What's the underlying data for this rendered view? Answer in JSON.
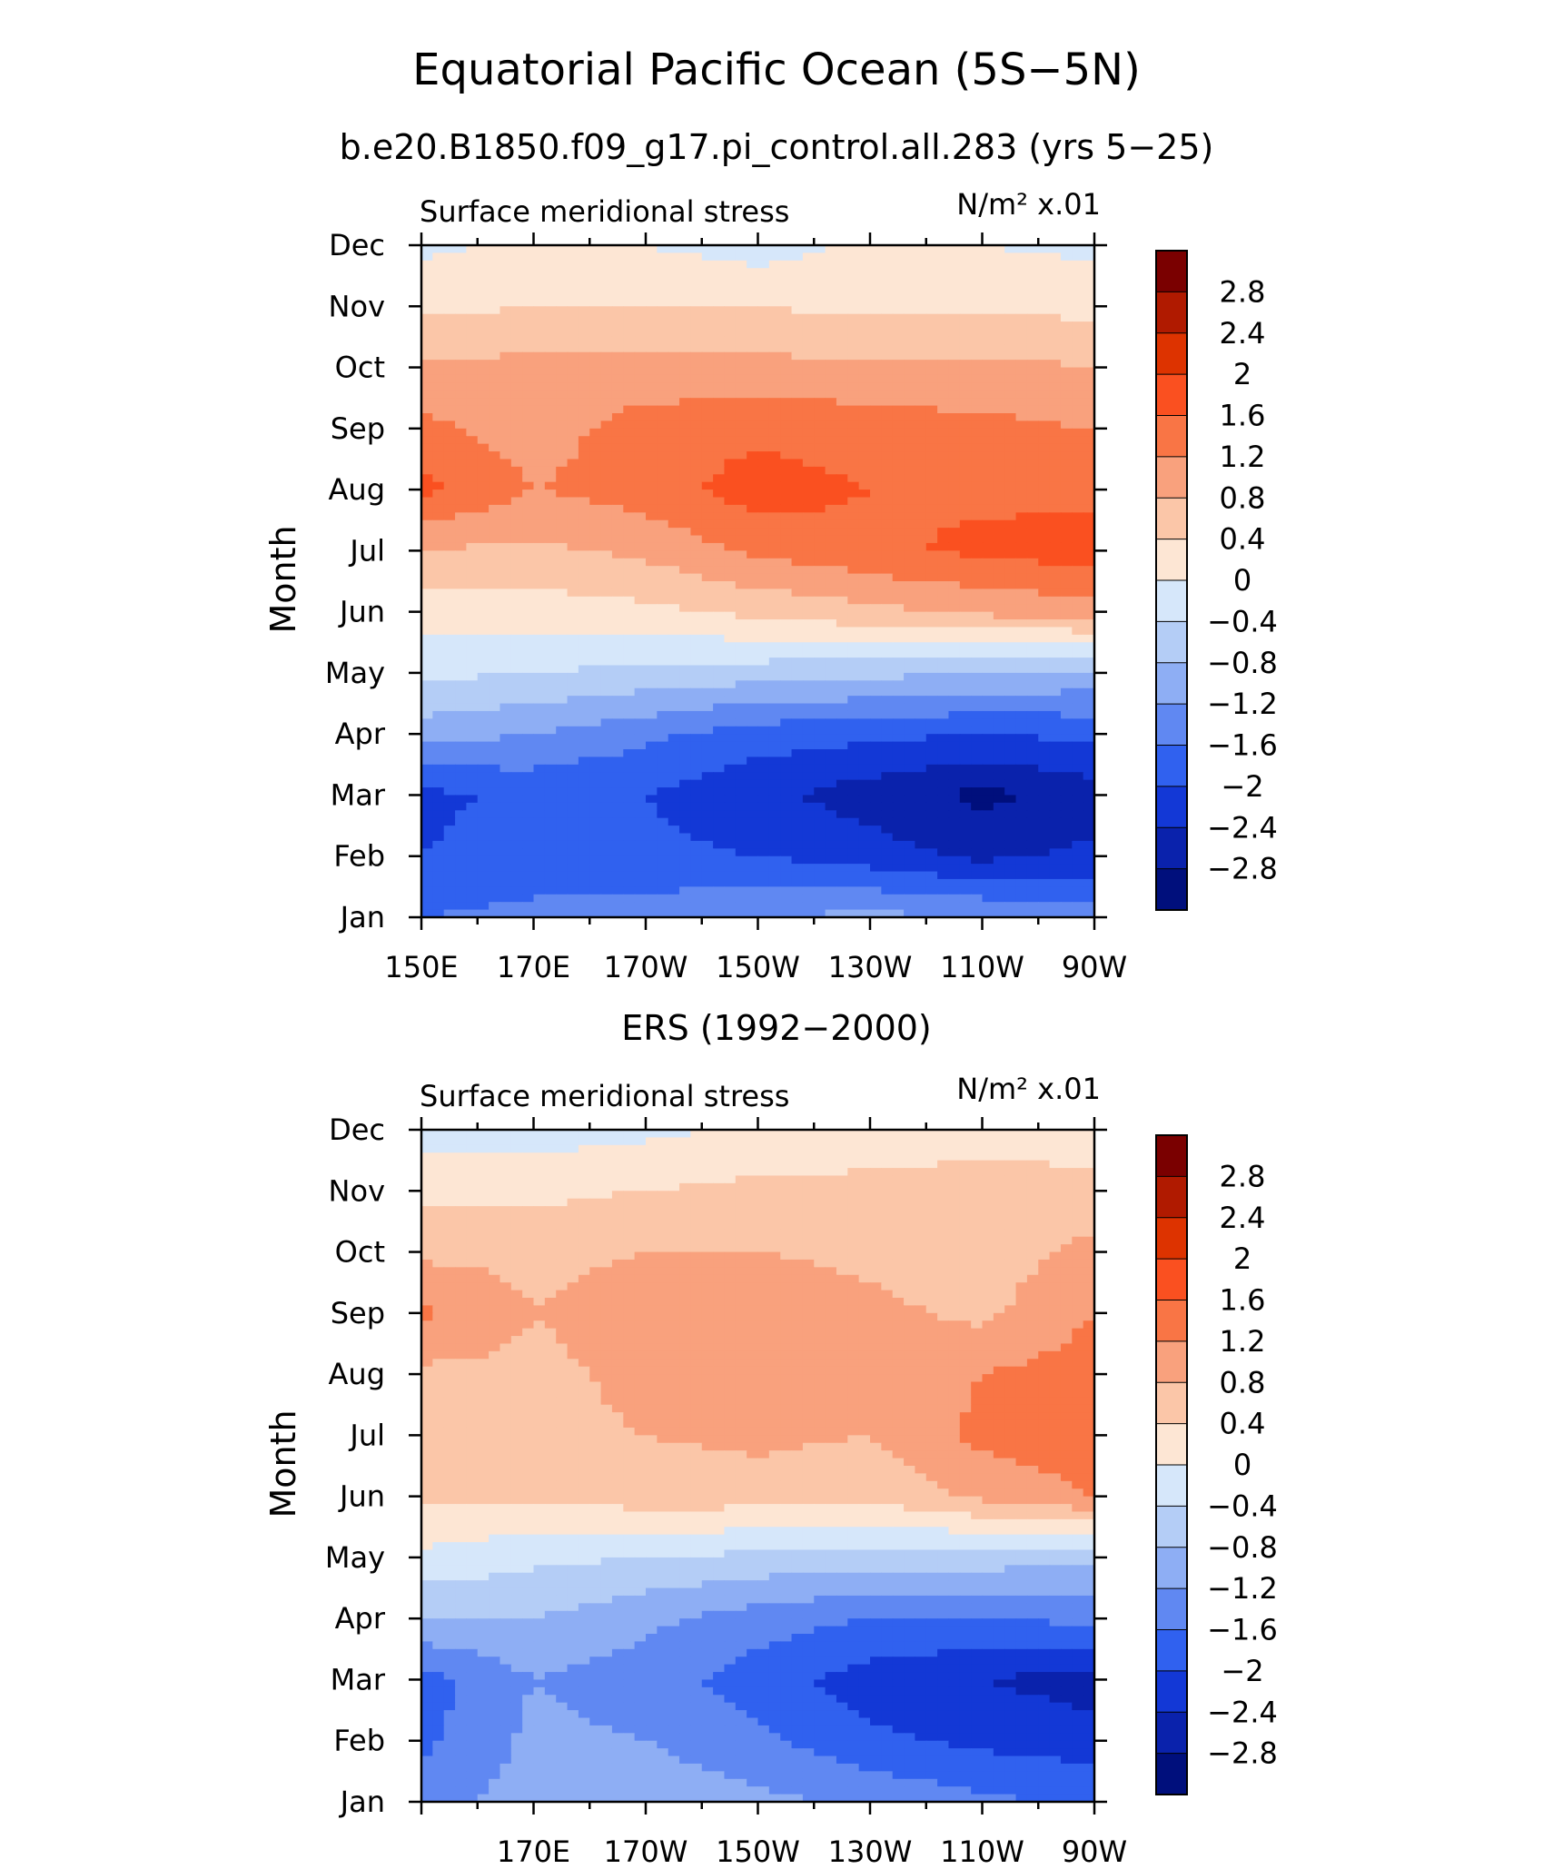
{
  "title": "Equatorial Pacific Ocean (5S−5N)",
  "chart_data": [
    {
      "type": "heatmap",
      "title": "b.e20.B1850.f09_g17.pi_control.all.283 (yrs 5−25)",
      "left_label": "Surface meridional stress",
      "right_label": "N/m² x.01",
      "ylabel": "Month",
      "xlabel": "",
      "x_tick_labels": [
        "150E",
        "170E",
        "170W",
        "150W",
        "130W",
        "110W",
        "90W"
      ],
      "y_tick_labels": [
        "Jan",
        "Feb",
        "Mar",
        "Apr",
        "May",
        "Jun",
        "Jul",
        "Aug",
        "Sep",
        "Oct",
        "Nov",
        "Dec"
      ],
      "x_range": [
        150,
        270
      ],
      "y_range": [
        1,
        12
      ],
      "x": [
        150,
        170,
        190,
        210,
        230,
        250,
        270
      ],
      "y": [
        "Jan",
        "Feb",
        "Mar",
        "Apr",
        "May",
        "Jun",
        "Jul",
        "Aug",
        "Sep",
        "Oct",
        "Nov",
        "Dec"
      ],
      "z": [
        [
          -1.6,
          -1.5,
          -1.4,
          -1.2,
          -1.1,
          -1.2,
          -1.4
        ],
        [
          -2.0,
          -1.8,
          -1.9,
          -2.0,
          -2.2,
          -2.5,
          -2.3
        ],
        [
          -2.1,
          -1.9,
          -2.0,
          -2.3,
          -2.6,
          -2.9,
          -2.6
        ],
        [
          -1.0,
          -1.2,
          -1.5,
          -1.8,
          -1.9,
          -2.0,
          -1.9
        ],
        [
          -0.3,
          -0.4,
          -0.5,
          -0.6,
          -0.7,
          -0.8,
          -0.9
        ],
        [
          0.2,
          0.2,
          0.3,
          0.5,
          0.7,
          0.9,
          1.0
        ],
        [
          0.8,
          0.7,
          0.9,
          1.3,
          1.5,
          1.7,
          1.8
        ],
        [
          1.7,
          1.2,
          1.4,
          1.8,
          1.6,
          1.5,
          1.5
        ],
        [
          1.3,
          1.0,
          1.4,
          1.5,
          1.4,
          1.3,
          1.2
        ],
        [
          0.9,
          0.9,
          0.9,
          0.9,
          0.9,
          0.9,
          0.8
        ],
        [
          0.3,
          0.4,
          0.4,
          0.4,
          0.3,
          0.3,
          0.3
        ],
        [
          -0.1,
          0.1,
          0.0,
          -0.2,
          0.1,
          0.0,
          -0.1
        ]
      ]
    },
    {
      "type": "heatmap",
      "title": "ERS (1992−2000)",
      "left_label": "Surface meridional stress",
      "right_label": "N/m² x.01",
      "ylabel": "Month",
      "xlabel": "",
      "x_tick_labels": [
        "170E",
        "170W",
        "150W",
        "130W",
        "110W",
        "90W"
      ],
      "y_tick_labels": [
        "Jan",
        "Feb",
        "Mar",
        "Apr",
        "May",
        "Jun",
        "Jul",
        "Aug",
        "Sep",
        "Oct",
        "Nov",
        "Dec"
      ],
      "x_range": [
        150,
        270
      ],
      "y_range": [
        1,
        12
      ],
      "x": [
        150,
        170,
        190,
        210,
        230,
        250,
        270
      ],
      "y": [
        "Jan",
        "Feb",
        "Mar",
        "Apr",
        "May",
        "Jun",
        "Jul",
        "Aug",
        "Sep",
        "Oct",
        "Nov",
        "Dec"
      ],
      "z": [
        [
          -1.4,
          -1.0,
          -0.9,
          -1.1,
          -1.3,
          -1.5,
          -1.7
        ],
        [
          -1.7,
          -1.1,
          -1.2,
          -1.5,
          -1.9,
          -2.1,
          -2.2
        ],
        [
          -1.8,
          -1.2,
          -1.4,
          -1.8,
          -2.2,
          -2.4,
          -2.6
        ],
        [
          -0.8,
          -0.8,
          -1.1,
          -1.4,
          -1.6,
          -1.6,
          -1.5
        ],
        [
          -0.1,
          -0.3,
          -0.4,
          -0.5,
          -0.6,
          -0.6,
          -0.7
        ],
        [
          0.5,
          0.5,
          0.6,
          0.6,
          0.5,
          0.9,
          1.2
        ],
        [
          0.6,
          0.7,
          0.8,
          0.9,
          0.8,
          1.3,
          1.5
        ],
        [
          0.7,
          0.7,
          0.9,
          1.0,
          0.9,
          1.2,
          1.4
        ],
        [
          1.3,
          0.8,
          1.0,
          1.1,
          0.9,
          0.7,
          1.2
        ],
        [
          0.7,
          0.7,
          0.8,
          0.8,
          0.7,
          0.6,
          0.9
        ],
        [
          0.3,
          0.3,
          0.4,
          0.5,
          0.5,
          0.6,
          0.6
        ],
        [
          -0.2,
          -0.2,
          -0.1,
          0.1,
          0.2,
          0.2,
          0.1
        ]
      ]
    }
  ],
  "colorbar": {
    "levels": [
      "2.8",
      "2.4",
      "2",
      "1.6",
      "1.2",
      "0.8",
      "0.4",
      "0",
      "−0.4",
      "−0.8",
      "−1.2",
      "−1.6",
      "−2",
      "−2.4",
      "−2.8"
    ],
    "colors": [
      "#7a0000",
      "#b01a00",
      "#dd3300",
      "#fa5020",
      "#f97545",
      "#f9a17d",
      "#fbc6a8",
      "#fde6d4",
      "#d6e7fa",
      "#b4cdf6",
      "#8eaef4",
      "#6088f2",
      "#3061ef",
      "#1338d6",
      "#0a22ac",
      "#000f7c"
    ]
  }
}
